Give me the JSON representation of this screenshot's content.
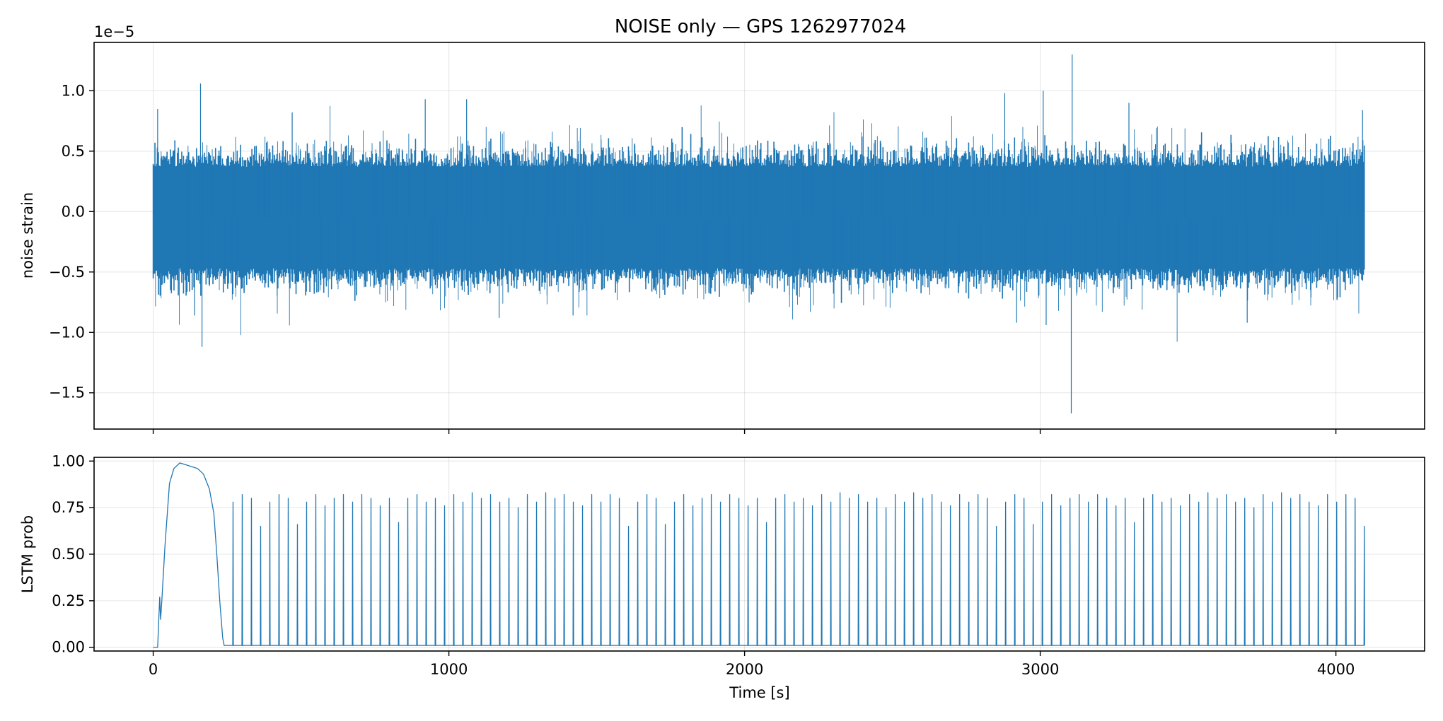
{
  "figure": {
    "title": "NOISE only — GPS 1262977024"
  },
  "chart_data": [
    {
      "type": "line",
      "panel": "top",
      "title": "NOISE only — GPS 1262977024",
      "xlabel": "",
      "ylabel": "noise strain",
      "offset_text": "1e−5",
      "x_range": [
        -200,
        4300
      ],
      "ylim": [
        -1.8,
        1.4
      ],
      "y_unit_scale": 1e-05,
      "yticks": [
        1.0,
        0.5,
        0.0,
        -0.5,
        -1.0,
        -1.5
      ],
      "ytick_labels": [
        "1.0",
        "0.5",
        "0.0",
        "−0.5",
        "−1.0",
        "−1.5"
      ],
      "xticks": [
        0,
        1000,
        2000,
        3000,
        4000
      ],
      "grid": true,
      "line_color": "#1f77b4",
      "series": [
        {
          "x_start": 0,
          "x_end": 4096,
          "n_samples": 1400,
          "baseline_mean": -0.05,
          "typical_amplitude": 0.42,
          "spikes": [
            {
              "x": 15,
              "y": 0.85
            },
            {
              "x": 160,
              "y": 1.06
            },
            {
              "x": 165,
              "y": -1.12
            },
            {
              "x": 140,
              "y": -0.86
            },
            {
              "x": 470,
              "y": 0.82
            },
            {
              "x": 920,
              "y": 0.93
            },
            {
              "x": 1060,
              "y": 0.93
            },
            {
              "x": 1170,
              "y": -0.88
            },
            {
              "x": 1420,
              "y": -0.86
            },
            {
              "x": 2880,
              "y": 0.98
            },
            {
              "x": 2920,
              "y": -0.92
            },
            {
              "x": 3010,
              "y": 1.0
            },
            {
              "x": 3020,
              "y": -0.94
            },
            {
              "x": 3108,
              "y": 1.3
            },
            {
              "x": 3105,
              "y": -1.67
            },
            {
              "x": 3300,
              "y": 0.9
            },
            {
              "x": 3700,
              "y": -0.92
            },
            {
              "x": 4090,
              "y": 0.84
            }
          ]
        }
      ]
    },
    {
      "type": "line",
      "panel": "bottom",
      "xlabel": "Time [s]",
      "ylabel": "LSTM prob",
      "x_range": [
        -200,
        4300
      ],
      "ylim": [
        -0.02,
        1.02
      ],
      "yticks": [
        1.0,
        0.75,
        0.5,
        0.25,
        0.0
      ],
      "ytick_labels": [
        "1.00",
        "0.75",
        "0.50",
        "0.25",
        "0.00"
      ],
      "xticks": [
        0,
        1000,
        2000,
        3000,
        4000
      ],
      "xtick_labels": [
        "0",
        "1000",
        "2000",
        "3000",
        "4000"
      ],
      "grid": true,
      "line_color": "#1f77b4",
      "series": [
        {
          "initial_bump": {
            "x": [
              0,
              15,
              22,
              25,
              28,
              40,
              55,
              70,
              90,
              110,
              130,
              150,
              170,
              190,
              205,
              215,
              225,
              235,
              240,
              250,
              260
            ],
            "y": [
              0.0,
              0.0,
              0.27,
              0.15,
              0.22,
              0.55,
              0.88,
              0.96,
              0.99,
              0.98,
              0.97,
              0.96,
              0.93,
              0.85,
              0.72,
              0.5,
              0.25,
              0.05,
              0.01,
              0.01,
              0.01
            ]
          },
          "spike_baseline": 0.01,
          "spike_start_x": 270,
          "spike_end_x": 4096,
          "spike_count": 124,
          "spike_heights": [
            0.78,
            0.82,
            0.8,
            0.65,
            0.78,
            0.82,
            0.8,
            0.66,
            0.78,
            0.82,
            0.76,
            0.8,
            0.82,
            0.78,
            0.82,
            0.8,
            0.76,
            0.8,
            0.67,
            0.8,
            0.82,
            0.78,
            0.8,
            0.76,
            0.82,
            0.78,
            0.83,
            0.8,
            0.82,
            0.78,
            0.8,
            0.75,
            0.82,
            0.78,
            0.83,
            0.8,
            0.82,
            0.78,
            0.76,
            0.82
          ]
        }
      ]
    }
  ]
}
